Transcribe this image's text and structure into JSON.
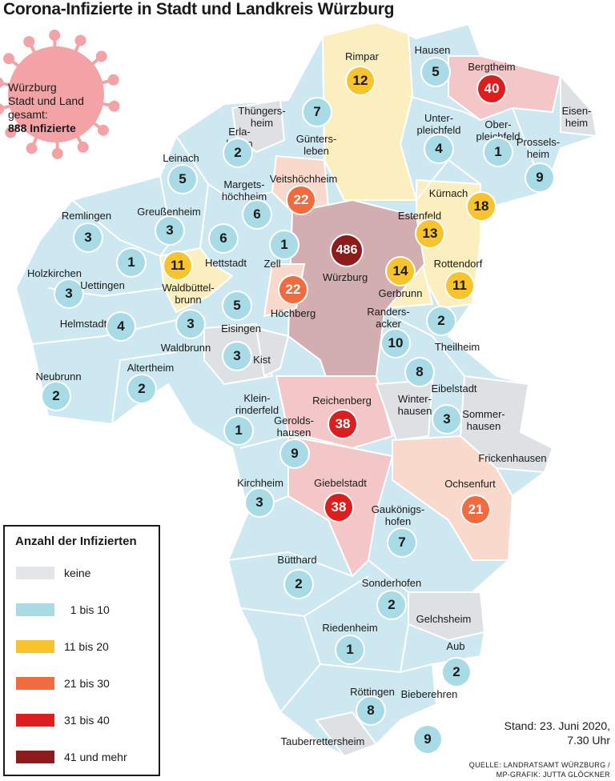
{
  "title": "Corona-Infizierte in Stadt und Landkreis Würzburg",
  "colors": {
    "keine": "#e3e6e8",
    "1_10": "#a9dbe6",
    "11_20": "#f7c42e",
    "21_30": "#f26b3f",
    "31_40": "#dc1e1e",
    "41plus": "#8e1a1a",
    "area_keine": "#dde1e4",
    "area_1_10": "#cde8f0",
    "area_11_20": "#fbefc0",
    "area_21_30": "#f9d9cc",
    "area_31_40": "#f3c6c8",
    "area_41plus": "#d3aeb0",
    "virus": "#f3a3a6"
  },
  "summary": {
    "line1": "Würzburg",
    "line2": "Stadt und Land",
    "line3": "gesamt:",
    "total": "888 Infizierte"
  },
  "legend": {
    "title": "Anzahl der Infizierten",
    "items": [
      {
        "label": "keine",
        "color": "#e3e6e8"
      },
      {
        "label": "  1 bis 10",
        "color": "#a9dbe6"
      },
      {
        "label": "11 bis 20",
        "color": "#f7c42e"
      },
      {
        "label": "21 bis 30",
        "color": "#f26b3f"
      },
      {
        "label": "31 bis 40",
        "color": "#dc1e1e"
      },
      {
        "label": "41 und mehr",
        "color": "#8e1a1a"
      }
    ]
  },
  "municipalities": [
    {
      "name": "Rimpar",
      "count": 12
    },
    {
      "name": "Hausen",
      "count": 5
    },
    {
      "name": "Bergtheim",
      "count": 40
    },
    {
      "name": "Eisen-\nheim",
      "count": null
    },
    {
      "name": "Thüngers-\nheim",
      "count": null
    },
    {
      "name": "Günters-\nleben",
      "count": 7
    },
    {
      "name": "Unter-\npleichfeld",
      "count": 4
    },
    {
      "name": "Ober-\npleichfeld",
      "count": 1
    },
    {
      "name": "Prossels-\nheim",
      "count": 9
    },
    {
      "name": "Erla-\nbrunn",
      "count": 2
    },
    {
      "name": "Leinach",
      "count": 5
    },
    {
      "name": "Margets-\nhöchheim",
      "count": 6
    },
    {
      "name": "Veitshöchheim",
      "count": 22
    },
    {
      "name": "Kürnach",
      "count": 18
    },
    {
      "name": "Estenfeld",
      "count": 13
    },
    {
      "name": "Remlingen",
      "count": 3
    },
    {
      "name": "Greußenheim",
      "count": 3
    },
    {
      "name": "Hettstadt",
      "count": 6
    },
    {
      "name": "Zell",
      "count": 1
    },
    {
      "name": "Würzburg",
      "count": 486
    },
    {
      "name": "Rottendorf",
      "count": 11
    },
    {
      "name": "Gerbrunn",
      "count": 14
    },
    {
      "name": "Holzkirchen",
      "count": 3
    },
    {
      "name": "Uettingen",
      "count": 1
    },
    {
      "name": "Waldbüttel-\nbrunn",
      "count": 11
    },
    {
      "name": "Höchberg",
      "count": 22
    },
    {
      "name": "Eisingen",
      "count": 5
    },
    {
      "name": "Randers-\nacker",
      "count": 10
    },
    {
      "name": "Theilheim",
      "count": 2
    },
    {
      "name": "Helmstadt",
      "count": 4
    },
    {
      "name": "Waldbrunn",
      "count": 3
    },
    {
      "name": "Kist",
      "count": 3
    },
    {
      "name": "Neubrunn",
      "count": 2
    },
    {
      "name": "Altertheim",
      "count": 2
    },
    {
      "name": "Eibelstadt",
      "count": 8
    },
    {
      "name": "Klein-\nrinderfeld",
      "count": 1
    },
    {
      "name": "Reichenberg",
      "count": 38
    },
    {
      "name": "Winter-\nhausen",
      "count": null
    },
    {
      "name": "Sommer-\nhausen",
      "count": 3
    },
    {
      "name": "Gerolds-\nhausen",
      "count": 9
    },
    {
      "name": "Frickenhausen",
      "count": null
    },
    {
      "name": "Kirchheim",
      "count": 3
    },
    {
      "name": "Giebelstadt",
      "count": 38
    },
    {
      "name": "Ochsenfurt",
      "count": 21
    },
    {
      "name": "Gaukönigs-\nhofen",
      "count": 7
    },
    {
      "name": "Bütthard",
      "count": 2
    },
    {
      "name": "Sonderhofen",
      "count": 2
    },
    {
      "name": "Gelchsheim",
      "count": null
    },
    {
      "name": "Riedenheim",
      "count": 1
    },
    {
      "name": "Aub",
      "count": 2
    },
    {
      "name": "Röttingen",
      "count": 8
    },
    {
      "name": "Bieberehren",
      "count": 9
    },
    {
      "name": "Tauberrettersheim",
      "count": null
    }
  ],
  "stand": {
    "line1": "Stand: 23. Juni 2020,",
    "line2": "7.30 Uhr"
  },
  "source": {
    "line1": "QUELLE: LANDRATSAMT WÜRZBURG /",
    "line2": "MP-GRAFIK: JUTTA GLÖCKNER"
  }
}
